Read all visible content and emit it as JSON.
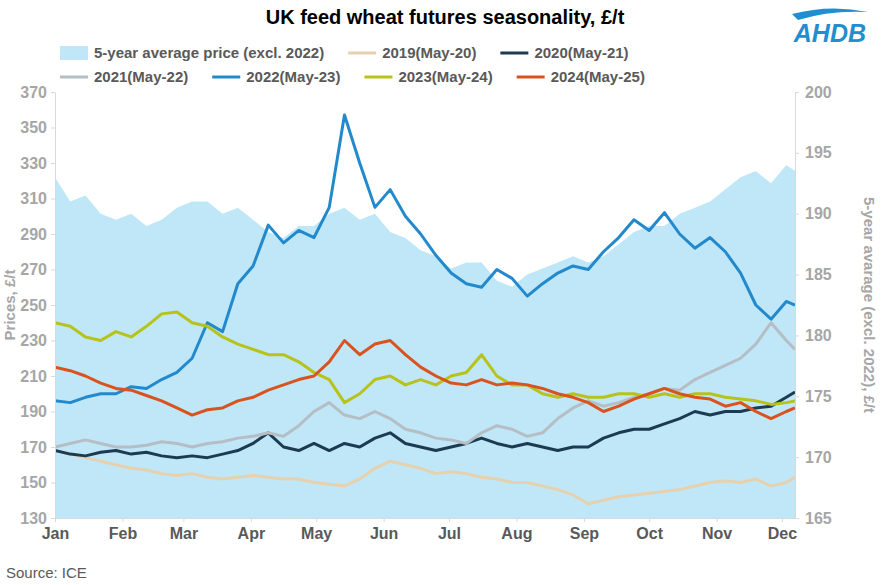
{
  "chart_data": {
    "type": "line",
    "title": "UK feed wheat futures seasonality, £/t",
    "logo": "AHDB",
    "source": "Source: ICE",
    "y_label": "Prices, £/t",
    "y2_label": "5-year avarage (excl. 2022), £/t",
    "grid": false,
    "legend": "top",
    "x": [
      0,
      7,
      14,
      21,
      28,
      35,
      42,
      49,
      56,
      63,
      70,
      77,
      84,
      91,
      98,
      105,
      112,
      119,
      126,
      133,
      140,
      147,
      154,
      161,
      168,
      175,
      182,
      189,
      196,
      203,
      210,
      217,
      224,
      231,
      238,
      245,
      252,
      259,
      266,
      273,
      280,
      287,
      294,
      301,
      308,
      315,
      322,
      329,
      336,
      340
    ],
    "xlim": [
      0,
      340
    ],
    "xticks": [
      {
        "value": 0,
        "label": "Jan"
      },
      {
        "value": 31,
        "label": "Feb"
      },
      {
        "value": 59,
        "label": "Mar"
      },
      {
        "value": 90,
        "label": "Apr"
      },
      {
        "value": 120,
        "label": "May"
      },
      {
        "value": 151,
        "label": "Jun"
      },
      {
        "value": 181,
        "label": "Jul"
      },
      {
        "value": 212,
        "label": "Aug"
      },
      {
        "value": 243,
        "label": "Sep"
      },
      {
        "value": 273,
        "label": "Oct"
      },
      {
        "value": 304,
        "label": "Nov"
      },
      {
        "value": 334,
        "label": "Dec"
      }
    ],
    "ylim": [
      130,
      370
    ],
    "yticks": [
      130,
      150,
      170,
      190,
      210,
      230,
      250,
      270,
      290,
      310,
      330,
      350,
      370
    ],
    "y2lim": [
      165,
      200
    ],
    "y2ticks": [
      165,
      170,
      175,
      180,
      185,
      190,
      195,
      200
    ],
    "series": [
      {
        "name": "5-year average price (excl. 2022)",
        "type": "area",
        "axis": "y2",
        "color": "#bfe7f8",
        "values": [
          193,
          191,
          191.5,
          190,
          189.5,
          190,
          189,
          189.5,
          190.5,
          191,
          191,
          190,
          190.5,
          189.5,
          188.5,
          188,
          189,
          189,
          190,
          190.5,
          189.5,
          190,
          188.5,
          188,
          187,
          186.5,
          185.5,
          186,
          186,
          184.5,
          184,
          185,
          185.5,
          186,
          186.5,
          186,
          186.5,
          187.5,
          188.5,
          189,
          189,
          190,
          190.5,
          191,
          192,
          193,
          193.5,
          192.5,
          194,
          193.5
        ]
      },
      {
        "name": "2019(May-20)",
        "type": "line",
        "color": "#e6d1ae",
        "values": [
          168,
          166,
          164,
          162,
          160,
          158,
          157,
          155,
          154,
          155,
          153,
          152,
          153,
          154,
          153,
          152,
          152,
          150,
          149,
          148,
          152,
          158,
          162,
          160,
          158,
          155,
          156,
          155,
          153,
          152,
          150,
          150,
          148,
          146,
          143,
          138,
          140,
          142,
          143,
          144,
          145,
          146,
          148,
          150,
          151,
          150,
          152,
          148,
          150,
          153
        ]
      },
      {
        "name": "2020(May-21)",
        "type": "line",
        "color": "#1d3b50",
        "values": [
          168,
          166,
          165,
          167,
          168,
          166,
          167,
          165,
          164,
          165,
          164,
          166,
          168,
          172,
          178,
          170,
          168,
          172,
          168,
          172,
          170,
          175,
          178,
          172,
          170,
          168,
          170,
          172,
          175,
          172,
          170,
          172,
          170,
          168,
          170,
          170,
          175,
          178,
          180,
          180,
          183,
          186,
          190,
          188,
          190,
          190,
          192,
          193,
          198,
          201
        ]
      },
      {
        "name": "2021(May-22)",
        "type": "line",
        "color": "#b5bec4",
        "values": [
          170,
          172,
          174,
          172,
          170,
          170,
          171,
          173,
          172,
          170,
          172,
          173,
          175,
          176,
          178,
          176,
          182,
          190,
          195,
          188,
          186,
          190,
          186,
          180,
          178,
          175,
          174,
          172,
          178,
          182,
          180,
          176,
          178,
          186,
          192,
          196,
          193,
          195,
          198,
          200,
          203,
          202,
          208,
          212,
          216,
          220,
          228,
          240,
          230,
          225
        ]
      },
      {
        "name": "2022(May-23)",
        "type": "line",
        "color": "#2289cc",
        "values": [
          196,
          195,
          198,
          200,
          200,
          204,
          203,
          208,
          212,
          220,
          240,
          235,
          262,
          272,
          295,
          285,
          292,
          288,
          305,
          357,
          330,
          305,
          315,
          300,
          290,
          278,
          268,
          262,
          260,
          270,
          265,
          255,
          262,
          268,
          272,
          270,
          280,
          288,
          298,
          292,
          302,
          290,
          282,
          288,
          280,
          268,
          250,
          242,
          252,
          250
        ]
      },
      {
        "name": "2023(May-24)",
        "type": "line",
        "color": "#b7c31b",
        "values": [
          240,
          238,
          232,
          230,
          235,
          232,
          238,
          245,
          246,
          240,
          238,
          232,
          228,
          225,
          222,
          222,
          218,
          212,
          208,
          195,
          200,
          208,
          210,
          205,
          208,
          205,
          210,
          212,
          222,
          210,
          205,
          205,
          200,
          198,
          200,
          198,
          198,
          200,
          200,
          198,
          200,
          198,
          200,
          200,
          198,
          197,
          196,
          194,
          195,
          196
        ]
      },
      {
        "name": "2024(May-25)",
        "type": "line",
        "color": "#d9531e",
        "values": [
          215,
          213,
          210,
          206,
          203,
          202,
          199,
          196,
          192,
          188,
          191,
          192,
          196,
          198,
          202,
          205,
          208,
          210,
          218,
          230,
          222,
          228,
          230,
          222,
          215,
          210,
          206,
          205,
          208,
          205,
          206,
          205,
          203,
          200,
          198,
          195,
          190,
          193,
          197,
          200,
          203,
          200,
          198,
          197,
          193,
          195,
          190,
          186,
          190,
          192
        ]
      }
    ]
  }
}
